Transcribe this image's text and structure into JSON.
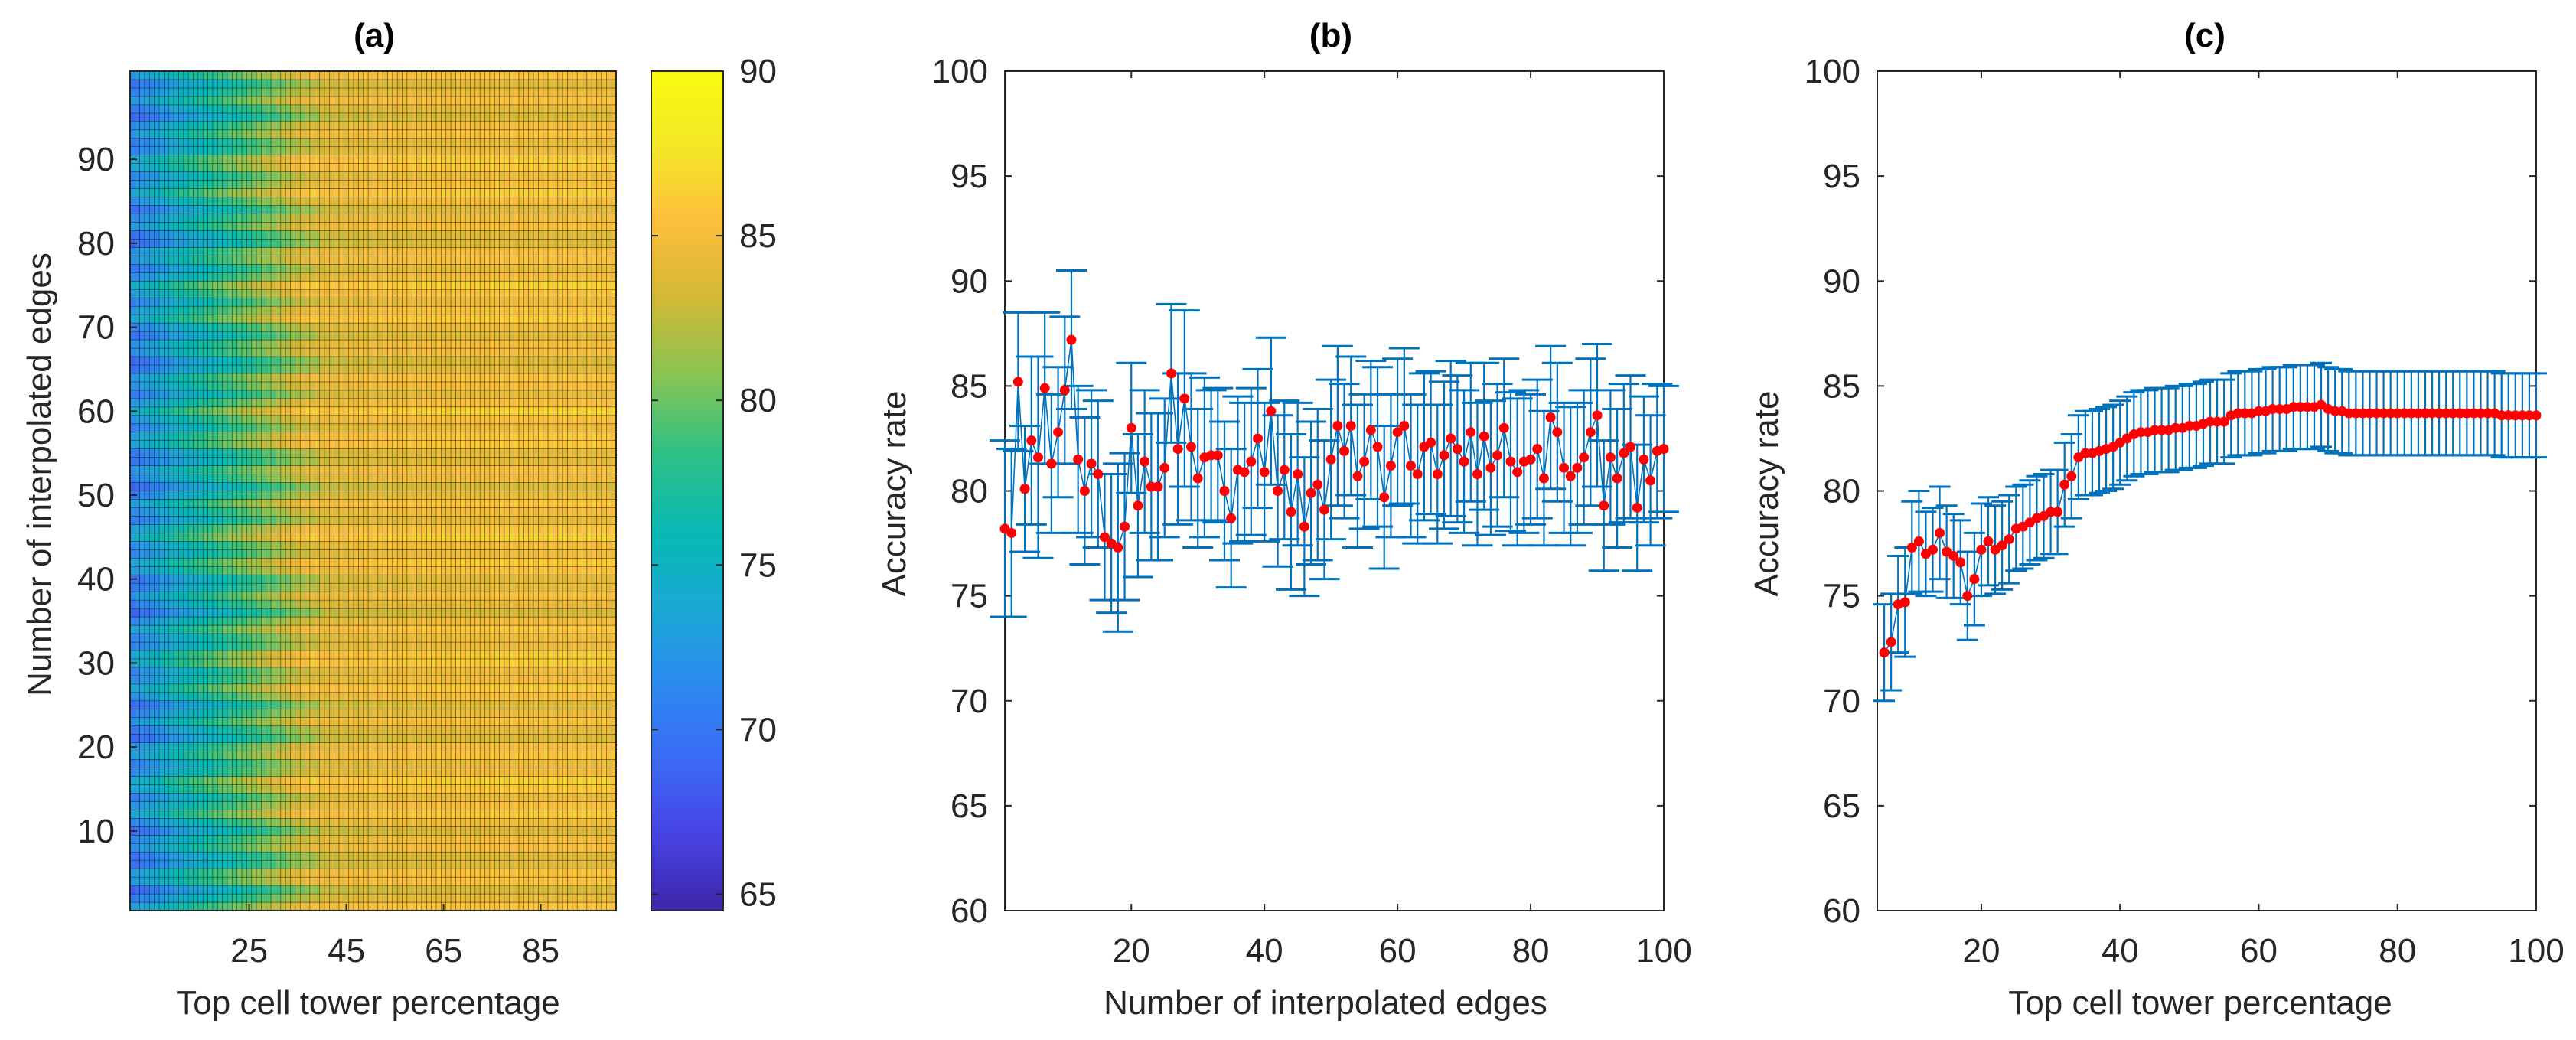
{
  "colors": {
    "error_bar": "#0072BD",
    "marker": "#FF0000",
    "axis": "#262626",
    "colormap": [
      "#3E26A8",
      "#4743E4",
      "#3B6AF5",
      "#2C8AF0",
      "#1BA9D3",
      "#07B9B5",
      "#32C182",
      "#8BC452",
      "#D2B935",
      "#FDBE3C",
      "#F3E727",
      "#F9FB0E"
    ]
  },
  "chart_data": [
    {
      "type": "heatmap",
      "title": "(a)",
      "xlabel": "Top cell tower percentage",
      "ylabel": "Number of interpolated edges",
      "x_tick_labels": [
        "25",
        "45",
        "65",
        "85"
      ],
      "y_tick_labels": [
        "10",
        "20",
        "30",
        "40",
        "50",
        "60",
        "70",
        "80",
        "90"
      ],
      "x_range": [
        1,
        100
      ],
      "y_range": [
        1,
        100
      ],
      "colorbar": {
        "min": 64.5,
        "max": 90,
        "ticks": [
          "65",
          "70",
          "75",
          "80",
          "85",
          "90"
        ]
      },
      "column_profile": [
        {
          "x": 1,
          "value": 71.5
        },
        {
          "x": 5,
          "value": 73
        },
        {
          "x": 10,
          "value": 75
        },
        {
          "x": 15,
          "value": 76.5
        },
        {
          "x": 20,
          "value": 78
        },
        {
          "x": 25,
          "value": 79.5
        },
        {
          "x": 30,
          "value": 81
        },
        {
          "x": 35,
          "value": 83
        },
        {
          "x": 40,
          "value": 84
        },
        {
          "x": 50,
          "value": 84.5
        },
        {
          "x": 60,
          "value": 84.8
        },
        {
          "x": 75,
          "value": 85
        },
        {
          "x": 100,
          "value": 85
        }
      ],
      "grid_cells": "100 x 100"
    },
    {
      "type": "errorbar",
      "title": "(b)",
      "xlabel": "Number of interpolated edges",
      "ylabel": "Accuracy rate",
      "xlim": [
        1,
        100
      ],
      "ylim": [
        60,
        100
      ],
      "x_tick_labels": [
        "20",
        "40",
        "60",
        "80",
        "100"
      ],
      "y_tick_labels": [
        "60",
        "65",
        "70",
        "75",
        "80",
        "85",
        "90",
        "95",
        "100"
      ],
      "x": [
        1,
        2,
        3,
        4,
        5,
        6,
        7,
        8,
        9,
        10,
        11,
        12,
        13,
        14,
        15,
        16,
        17,
        18,
        19,
        20,
        21,
        22,
        23,
        24,
        25,
        26,
        27,
        28,
        29,
        30,
        31,
        32,
        33,
        34,
        35,
        36,
        37,
        38,
        39,
        40,
        41,
        42,
        43,
        44,
        45,
        46,
        47,
        48,
        49,
        50,
        51,
        52,
        53,
        54,
        55,
        56,
        57,
        58,
        59,
        60,
        61,
        62,
        63,
        64,
        65,
        66,
        67,
        68,
        69,
        70,
        71,
        72,
        73,
        74,
        75,
        76,
        77,
        78,
        79,
        80,
        81,
        82,
        83,
        84,
        85,
        86,
        87,
        88,
        89,
        90,
        91,
        92,
        93,
        94,
        95,
        96,
        97,
        98,
        99,
        100
      ],
      "mean": [
        78.2,
        78.0,
        85.2,
        80.1,
        82.4,
        81.6,
        84.9,
        81.3,
        82.8,
        84.8,
        87.2,
        81.5,
        80.0,
        81.3,
        80.8,
        77.8,
        77.5,
        77.3,
        78.3,
        83.0,
        79.3,
        81.4,
        80.2,
        80.2,
        81.1,
        85.6,
        82.0,
        84.4,
        82.1,
        80.6,
        81.6,
        81.7,
        81.7,
        80.0,
        78.7,
        81.0,
        80.9,
        81.4,
        82.5,
        80.9,
        83.8,
        80.0,
        81.0,
        79.0,
        80.8,
        78.3,
        79.9,
        80.3,
        79.1,
        81.5,
        83.1,
        81.9,
        83.1,
        80.7,
        81.4,
        82.9,
        82.1,
        79.7,
        81.2,
        82.8,
        83.1,
        81.2,
        80.8,
        82.1,
        82.3,
        80.8,
        81.7,
        82.5,
        82.0,
        81.4,
        82.8,
        80.8,
        82.6,
        81.1,
        81.7,
        83.0,
        81.4,
        80.9,
        81.4,
        81.5,
        82.0,
        80.6,
        83.5,
        82.8,
        81.1,
        80.7,
        81.1,
        81.6,
        82.8,
        83.6,
        79.3,
        81.6,
        80.6,
        81.8,
        82.1,
        null,
        null,
        null,
        null,
        null
      ],
      "err": [
        4.2,
        4.0,
        3.3,
        3.0,
        4.0,
        4.8,
        3.6,
        3.3,
        3.1,
        3.5,
        3.3,
        3.5,
        3.5,
        3.5,
        3.5,
        3.0,
        3.3,
        4.0,
        3.5,
        3.1,
        3.4,
        3.4,
        3.5,
        3.5,
        3.3,
        3.3,
        3.6,
        4.2,
        3.5,
        3.3,
        3.8,
        3.1,
        3.2,
        3.3,
        3.3,
        3.5,
        3.3,
        3.5,
        3.3,
        3.3,
        3.5,
        3.6,
        3.3,
        3.7,
        3.4,
        3.3,
        3.4,
        3.6,
        3.3,
        3.8,
        3.8,
        3.2,
        3.3,
        3.4,
        3.2,
        3.3,
        3.8,
        3.4,
        3.4,
        3.5,
        3.7,
        3.4,
        3.3,
        3.5,
        3.4,
        3.3,
        3.5,
        3.7,
        3.5,
        3.4,
        3.3,
        3.4,
        3.5,
        3.2,
        3.4,
        3.3,
        3.3,
        3.5,
        3.4,
        3.1,
        3.3,
        3.2,
        3.4,
        3.3,
        3.1,
        3.3,
        3.1,
        3.2,
        3.5,
        3.4,
        3.1,
        3.2,
        3.3,
        3.3,
        3.4,
        3.0,
        3.0,
        3.1,
        3.2,
        3.0
      ],
      "mean_end": [
        79.2,
        81.5,
        80.5,
        81.9,
        82.0
      ]
    },
    {
      "type": "errorbar",
      "title": "(c)",
      "xlabel": "Top cell tower percentage",
      "ylabel": "Accuracy rate",
      "xlim": [
        5,
        100
      ],
      "ylim": [
        60,
        100
      ],
      "x_tick_labels": [
        "20",
        "40",
        "60",
        "80",
        "100"
      ],
      "y_tick_labels": [
        "60",
        "65",
        "70",
        "75",
        "80",
        "85",
        "90",
        "95",
        "100"
      ],
      "x_start": 6,
      "x_end": 100,
      "mean": [
        72.3,
        72.8,
        74.6,
        74.7,
        77.3,
        77.6,
        77.0,
        77.2,
        78.0,
        77.1,
        76.9,
        76.6,
        75.0,
        75.8,
        77.2,
        77.6,
        77.2,
        77.4,
        77.7,
        78.2,
        78.3,
        78.5,
        78.7,
        78.8,
        79.0,
        79.0,
        80.3,
        80.7,
        81.6,
        81.8,
        81.8,
        81.9,
        82.0,
        82.1,
        82.3,
        82.5,
        82.7,
        82.8,
        82.8,
        82.9,
        82.9,
        82.9,
        83.0,
        83.0,
        83.1,
        83.1,
        83.2,
        83.3,
        83.3,
        83.3,
        83.6,
        83.7,
        83.7,
        83.7,
        83.8,
        83.8,
        83.9,
        83.9,
        83.9,
        84.0,
        84.0,
        84.0,
        84.0,
        84.1,
        83.9,
        83.8,
        83.8,
        83.7,
        83.7,
        83.7,
        83.7,
        83.7,
        83.7,
        83.7,
        83.7,
        83.7,
        83.7,
        83.7,
        83.7,
        83.7,
        83.7,
        83.7,
        83.7,
        83.7,
        83.7,
        83.7,
        83.7,
        83.7,
        83.7,
        83.6,
        83.6,
        83.6,
        83.6,
        83.6,
        83.6
      ],
      "err": [
        2.3,
        2.3,
        2.3,
        2.6,
        2.2,
        2.4,
        2.0,
        2.0,
        2.2,
        2.2,
        2.0,
        2.0,
        2.1,
        2.2,
        2.2,
        2.1,
        2.1,
        2.1,
        2.1,
        2.0,
        2.0,
        2.0,
        2.0,
        2.0,
        2.0,
        2.0,
        2.0,
        2.0,
        2.0,
        2.0,
        2.0,
        2.0,
        2.0,
        2.0,
        2.0,
        2.0,
        2.0,
        2.0,
        2.0,
        2.0,
        2.0,
        2.0,
        2.0,
        2.0,
        2.0,
        2.0,
        2.0,
        2.0,
        2.0,
        2.0,
        2.0,
        2.0,
        2.0,
        2.0,
        2.0,
        2.0,
        2.0,
        2.0,
        2.0,
        2.0,
        2.0,
        2.0,
        2.0,
        2.0,
        2.0,
        2.0,
        2.0,
        2.0,
        2.0,
        2.0,
        2.0,
        2.0,
        2.0,
        2.0,
        2.0,
        2.0,
        2.0,
        2.0,
        2.0,
        2.0,
        2.0,
        2.0,
        2.0,
        2.0,
        2.0,
        2.0,
        2.0,
        2.0,
        2.0,
        2.0,
        2.0,
        2.0,
        2.0,
        2.0,
        2.0
      ]
    }
  ]
}
